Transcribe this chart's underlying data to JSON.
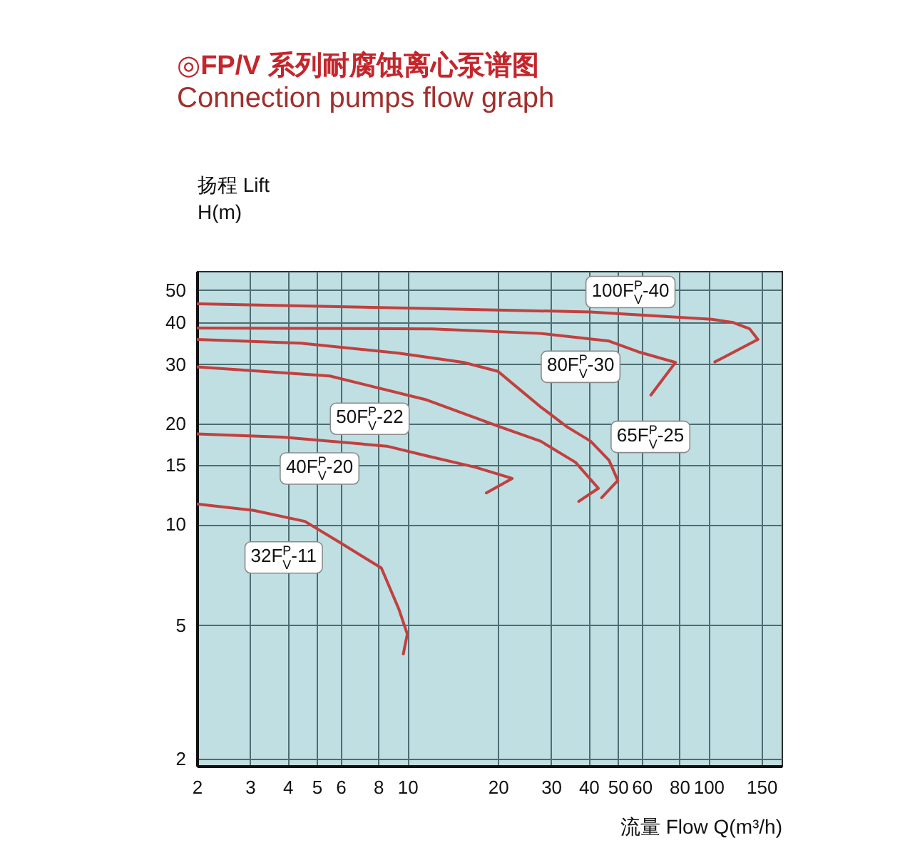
{
  "chart_data": {
    "type": "line",
    "title": "◎FP/V 系列耐腐蚀离心泵谱图",
    "subtitle": "Connection pumps flow graph",
    "xlabel": "流量 Flow Q(m³/h)",
    "ylabel": "扬程 Lift\nH(m)",
    "log": "xy",
    "grid": true,
    "xlim": [
      2,
      175
    ],
    "ylim": [
      1.9,
      57
    ],
    "xticks": [
      2,
      3,
      4,
      5,
      6,
      8,
      10,
      20,
      30,
      40,
      50,
      60,
      80,
      100,
      150
    ],
    "yticks": [
      2,
      5,
      10,
      15,
      20,
      30,
      40,
      50
    ],
    "series": [
      {
        "name": "100F$^{P}$$_{V}$-40",
        "color": "#c2403e",
        "x": [
          2,
          12.1,
          40.6,
          102.6,
          121,
          137,
          146,
          105
        ],
        "values": [
          45.5,
          44,
          43,
          40.9,
          40,
          38.3,
          35.6,
          30.5
        ]
      },
      {
        "name": "80F$^{P}$$_{V}$-30",
        "color": "#c2403e",
        "x": [
          2,
          12.1,
          27.7,
          46.8,
          59.2,
          77.7,
          64.4
        ],
        "values": [
          38.5,
          38.3,
          37.1,
          35.2,
          32.6,
          30.4,
          24.3
        ]
      },
      {
        "name": "65F$^{P}$$_{V}$-25",
        "color": "#c2403e",
        "x": [
          2,
          4.43,
          9.36,
          15.4,
          20,
          23.3,
          27.7,
          34,
          40.6,
          46.8,
          50,
          44.2
        ],
        "values": [
          35.6,
          34.7,
          32.4,
          30.4,
          28.6,
          25.5,
          22.4,
          19.5,
          17.7,
          15.5,
          13.5,
          12.0
        ]
      },
      {
        "name": "50F$^{P}$$_{V}$-22",
        "color": "#c2403e",
        "x": [
          2,
          5.53,
          11.6,
          20.4,
          27.7,
          36.2,
          43.1,
          37.1
        ],
        "values": [
          29.5,
          27.7,
          23.5,
          19.5,
          17.7,
          15.3,
          12.8,
          11.7
        ]
      },
      {
        "name": "40F$^{P}$$_{V}$-20",
        "color": "#c2403e",
        "x": [
          2,
          3.85,
          8.55,
          11.6,
          16.8,
          22.3,
          18.3
        ],
        "values": [
          18.6,
          18.2,
          17.1,
          16.0,
          14.8,
          13.7,
          12.4
        ]
      },
      {
        "name": "32F$^{P}$$_{V}$-11",
        "color": "#c2403e",
        "x": [
          2,
          3.09,
          4.57,
          6,
          8.2,
          9.36,
          10,
          9.7
        ],
        "values": [
          11.5,
          11.0,
          10.2,
          8.8,
          7.4,
          5.6,
          4.7,
          4.1
        ]
      }
    ]
  }
}
